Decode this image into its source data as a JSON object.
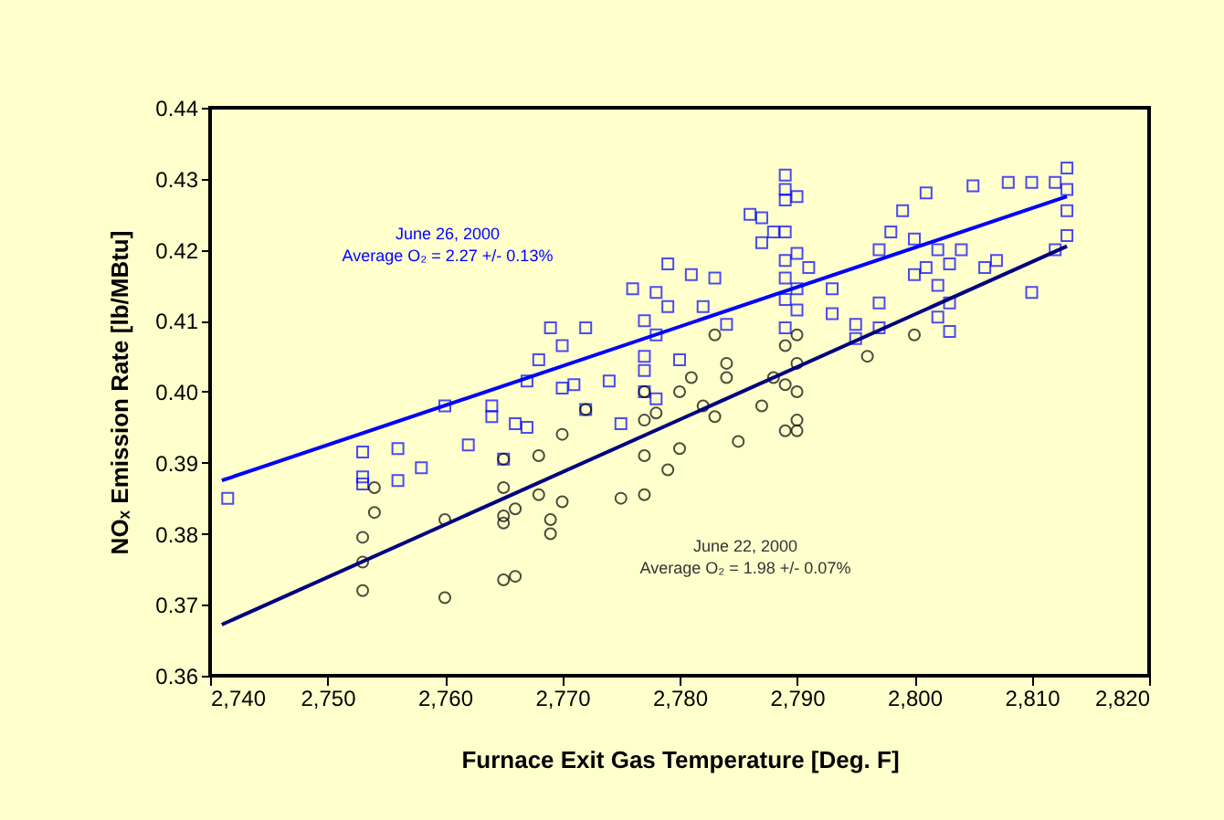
{
  "chart_data": {
    "type": "scatter",
    "xlabel": "Furnace Exit Gas Temperature [Deg. F]",
    "ylabel": "NOₓ Emission Rate [lb/MBtu]",
    "xlim": [
      2740,
      2820
    ],
    "ylim": [
      0.36,
      0.44
    ],
    "xticks": [
      {
        "value": 2740,
        "label": "2,740"
      },
      {
        "value": 2750,
        "label": "2,750"
      },
      {
        "value": 2760,
        "label": "2,760"
      },
      {
        "value": 2770,
        "label": "2,770"
      },
      {
        "value": 2780,
        "label": "2,780"
      },
      {
        "value": 2790,
        "label": "2,790"
      },
      {
        "value": 2800,
        "label": "2,800"
      },
      {
        "value": 2810,
        "label": "2,810"
      },
      {
        "value": 2820,
        "label": "2,820"
      }
    ],
    "yticks": [
      {
        "value": 0.36,
        "label": "0.36"
      },
      {
        "value": 0.37,
        "label": "0.37"
      },
      {
        "value": 0.38,
        "label": "0.38"
      },
      {
        "value": 0.39,
        "label": "0.39"
      },
      {
        "value": 0.4,
        "label": "0.40"
      },
      {
        "value": 0.41,
        "label": "0.41"
      },
      {
        "value": 0.42,
        "label": "0.42"
      },
      {
        "value": 0.43,
        "label": "0.43"
      },
      {
        "value": 0.44,
        "label": "0.44"
      }
    ],
    "grid": false,
    "series": [
      {
        "type": "scatter",
        "marker": "square",
        "color": "#0000ff",
        "x": [
          2741.5,
          2753,
          2753,
          2753,
          2756,
          2756,
          2758,
          2760,
          2762,
          2764,
          2764,
          2765,
          2766,
          2767,
          2767,
          2768,
          2769,
          2770,
          2770,
          2771,
          2772,
          2772,
          2774,
          2775,
          2776,
          2777,
          2777,
          2777,
          2777,
          2778,
          2778,
          2778,
          2779,
          2779,
          2780,
          2781,
          2782,
          2783,
          2784,
          2786,
          2787,
          2787,
          2788,
          2789,
          2789,
          2789,
          2789,
          2789,
          2789,
          2789,
          2789,
          2790,
          2790,
          2790,
          2790,
          2791,
          2793,
          2793,
          2795,
          2795,
          2797,
          2797,
          2797,
          2798,
          2799,
          2800,
          2800,
          2801,
          2801,
          2802,
          2802,
          2802,
          2803,
          2803,
          2803,
          2804,
          2805,
          2806,
          2807,
          2808,
          2810,
          2810,
          2812,
          2813,
          2813,
          2813,
          2813,
          2812
        ],
        "values": [
          0.385,
          0.3915,
          0.388,
          0.387,
          0.392,
          0.3875,
          0.3893,
          0.398,
          0.3925,
          0.398,
          0.3965,
          0.3905,
          0.3955,
          0.395,
          0.4015,
          0.4045,
          0.409,
          0.4065,
          0.4005,
          0.401,
          0.409,
          0.3975,
          0.4015,
          0.3955,
          0.4145,
          0.41,
          0.405,
          0.403,
          0.4,
          0.414,
          0.408,
          0.399,
          0.418,
          0.412,
          0.4045,
          0.4165,
          0.412,
          0.416,
          0.4095,
          0.425,
          0.4245,
          0.421,
          0.4225,
          0.4305,
          0.4285,
          0.427,
          0.4225,
          0.4185,
          0.416,
          0.413,
          0.409,
          0.4195,
          0.4145,
          0.4115,
          0.4275,
          0.4175,
          0.4145,
          0.411,
          0.4095,
          0.4075,
          0.42,
          0.4125,
          0.409,
          0.4225,
          0.4255,
          0.4215,
          0.4165,
          0.428,
          0.4175,
          0.4105,
          0.415,
          0.42,
          0.418,
          0.4125,
          0.4085,
          0.42,
          0.429,
          0.4175,
          0.4185,
          0.4295,
          0.4295,
          0.414,
          0.4295,
          0.4315,
          0.4285,
          0.4255,
          0.422,
          0.42
        ]
      },
      {
        "type": "scatter",
        "marker": "circle",
        "color": "#000000",
        "x": [
          2753,
          2753,
          2753,
          2754,
          2754,
          2760,
          2760,
          2765,
          2765,
          2765,
          2765,
          2765,
          2766,
          2766,
          2768,
          2768,
          2769,
          2769,
          2770,
          2770,
          2772,
          2775,
          2777,
          2777,
          2777,
          2777,
          2778,
          2779,
          2780,
          2780,
          2781,
          2782,
          2783,
          2783,
          2784,
          2784,
          2785,
          2787,
          2788,
          2789,
          2789,
          2789,
          2790,
          2790,
          2790,
          2790,
          2790,
          2796,
          2800
        ],
        "values": [
          0.3795,
          0.376,
          0.372,
          0.3865,
          0.383,
          0.371,
          0.382,
          0.3905,
          0.3865,
          0.3825,
          0.3815,
          0.3735,
          0.3835,
          0.374,
          0.391,
          0.3855,
          0.382,
          0.38,
          0.3845,
          0.394,
          0.3975,
          0.385,
          0.4,
          0.396,
          0.391,
          0.3855,
          0.397,
          0.389,
          0.392,
          0.4,
          0.402,
          0.398,
          0.3965,
          0.408,
          0.404,
          0.402,
          0.393,
          0.398,
          0.402,
          0.401,
          0.3945,
          0.4065,
          0.404,
          0.396,
          0.3945,
          0.4,
          0.408,
          0.405,
          0.408
        ]
      },
      {
        "type": "line",
        "color": "#0000ff",
        "x": [
          2741,
          2813
        ],
        "values": [
          0.3875,
          0.4275
        ]
      },
      {
        "type": "line",
        "color": "#000080",
        "x": [
          2741,
          2813
        ],
        "values": [
          0.3672,
          0.4205
        ]
      }
    ],
    "annotations": [
      "June 26, 2000\nAverage O₂ = 2.27 +/- 0.13%",
      "June 22, 2000\nAverage O₂ = 1.98 +/- 0.07%"
    ]
  }
}
